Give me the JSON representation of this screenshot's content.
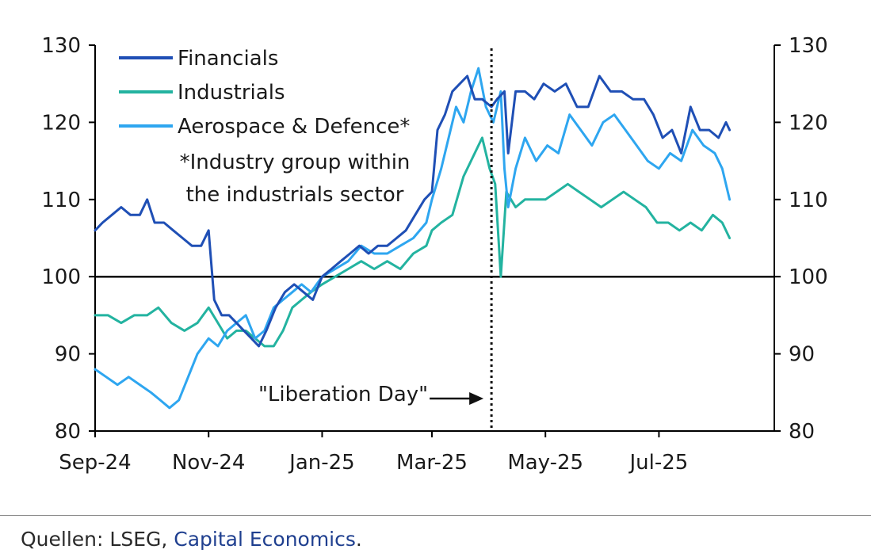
{
  "colors": {
    "financials": "#1f4fb5",
    "industrials": "#23b3a0",
    "aerospace": "#2ea6f0",
    "axis": "#000000",
    "source_link": "#1f3f8f"
  },
  "footer": {
    "source_prefix": "Quellen: LSEG, ",
    "source_link": "Capital Economics",
    "source_suffix": "."
  },
  "chart_data": {
    "type": "line",
    "title": "",
    "xlabel": "",
    "ylabel": "",
    "ylim": [
      80,
      130
    ],
    "y_ticks": [
      "80",
      "90",
      "100",
      "110",
      "120",
      "130"
    ],
    "y_tick_values": [
      80,
      90,
      100,
      110,
      120,
      130
    ],
    "right_y_ticks": [
      "80",
      "90",
      "100",
      "110",
      "120",
      "130"
    ],
    "x_start_date": "2024-09-01",
    "x_end_date": "2025-09-01",
    "x_ticks": [
      "Sep-24",
      "Nov-24",
      "Jan-25",
      "Mar-25",
      "May-25",
      "Jul-25"
    ],
    "x_tick_dates": [
      "2024-09-01",
      "2024-11-01",
      "2025-01-01",
      "2025-03-01",
      "2025-05-01",
      "2025-07-01"
    ],
    "reference_line": 100,
    "grid": false,
    "legend_position": "top-left",
    "legend_note": [
      "*Industry group within",
      "the industrials sector"
    ],
    "annotation": {
      "label": "\"Liberation Day\"",
      "date": "2025-04-02"
    },
    "series": [
      {
        "name": "Financials",
        "color": "#1f4fb5",
        "points": [
          [
            "2024-09-01",
            106
          ],
          [
            "2024-09-05",
            107
          ],
          [
            "2024-09-10",
            108
          ],
          [
            "2024-09-15",
            109
          ],
          [
            "2024-09-20",
            108
          ],
          [
            "2024-09-25",
            108
          ],
          [
            "2024-09-29",
            110
          ],
          [
            "2024-10-03",
            107
          ],
          [
            "2024-10-08",
            107
          ],
          [
            "2024-10-13",
            106
          ],
          [
            "2024-10-18",
            105
          ],
          [
            "2024-10-23",
            104
          ],
          [
            "2024-10-28",
            104
          ],
          [
            "2024-11-01",
            106
          ],
          [
            "2024-11-04",
            97
          ],
          [
            "2024-11-08",
            95
          ],
          [
            "2024-11-12",
            95
          ],
          [
            "2024-11-16",
            94
          ],
          [
            "2024-11-20",
            93
          ],
          [
            "2024-11-24",
            92
          ],
          [
            "2024-11-28",
            91
          ],
          [
            "2024-12-02",
            93
          ],
          [
            "2024-12-07",
            96
          ],
          [
            "2024-12-12",
            98
          ],
          [
            "2024-12-17",
            99
          ],
          [
            "2024-12-22",
            98
          ],
          [
            "2024-12-27",
            97
          ],
          [
            "2025-01-01",
            100
          ],
          [
            "2025-01-06",
            101
          ],
          [
            "2025-01-11",
            102
          ],
          [
            "2025-01-16",
            103
          ],
          [
            "2025-01-21",
            104
          ],
          [
            "2025-01-26",
            103
          ],
          [
            "2025-01-31",
            104
          ],
          [
            "2025-02-05",
            104
          ],
          [
            "2025-02-10",
            105
          ],
          [
            "2025-02-15",
            106
          ],
          [
            "2025-02-20",
            108
          ],
          [
            "2025-02-25",
            110
          ],
          [
            "2025-03-01",
            111
          ],
          [
            "2025-03-04",
            119
          ],
          [
            "2025-03-08",
            121
          ],
          [
            "2025-03-12",
            124
          ],
          [
            "2025-03-16",
            125
          ],
          [
            "2025-03-20",
            126
          ],
          [
            "2025-03-24",
            123
          ],
          [
            "2025-03-28",
            123
          ],
          [
            "2025-04-02",
            122
          ],
          [
            "2025-04-05",
            123
          ],
          [
            "2025-04-09",
            124
          ],
          [
            "2025-04-11",
            116
          ],
          [
            "2025-04-15",
            124
          ],
          [
            "2025-04-20",
            124
          ],
          [
            "2025-04-25",
            123
          ],
          [
            "2025-04-30",
            125
          ],
          [
            "2025-05-06",
            124
          ],
          [
            "2025-05-12",
            125
          ],
          [
            "2025-05-18",
            122
          ],
          [
            "2025-05-24",
            122
          ],
          [
            "2025-05-30",
            126
          ],
          [
            "2025-06-05",
            124
          ],
          [
            "2025-06-11",
            124
          ],
          [
            "2025-06-17",
            123
          ],
          [
            "2025-06-23",
            123
          ],
          [
            "2025-06-28",
            121
          ],
          [
            "2025-07-03",
            118
          ],
          [
            "2025-07-08",
            119
          ],
          [
            "2025-07-13",
            116
          ],
          [
            "2025-07-18",
            122
          ],
          [
            "2025-07-23",
            119
          ],
          [
            "2025-07-28",
            119
          ],
          [
            "2025-08-02",
            118
          ],
          [
            "2025-08-06",
            120
          ],
          [
            "2025-08-08",
            119
          ]
        ]
      },
      {
        "name": "Industrials",
        "color": "#23b3a0",
        "points": [
          [
            "2024-09-01",
            95
          ],
          [
            "2024-09-08",
            95
          ],
          [
            "2024-09-15",
            94
          ],
          [
            "2024-09-22",
            95
          ],
          [
            "2024-09-29",
            95
          ],
          [
            "2024-10-05",
            96
          ],
          [
            "2024-10-12",
            94
          ],
          [
            "2024-10-19",
            93
          ],
          [
            "2024-10-26",
            94
          ],
          [
            "2024-11-01",
            96
          ],
          [
            "2024-11-06",
            94
          ],
          [
            "2024-11-11",
            92
          ],
          [
            "2024-11-16",
            93
          ],
          [
            "2024-11-21",
            93
          ],
          [
            "2024-11-26",
            92
          ],
          [
            "2024-12-01",
            91
          ],
          [
            "2024-12-06",
            91
          ],
          [
            "2024-12-11",
            93
          ],
          [
            "2024-12-16",
            96
          ],
          [
            "2024-12-21",
            97
          ],
          [
            "2024-12-26",
            98
          ],
          [
            "2025-01-01",
            99
          ],
          [
            "2025-01-08",
            100
          ],
          [
            "2025-01-15",
            101
          ],
          [
            "2025-01-22",
            102
          ],
          [
            "2025-01-29",
            101
          ],
          [
            "2025-02-05",
            102
          ],
          [
            "2025-02-12",
            101
          ],
          [
            "2025-02-19",
            103
          ],
          [
            "2025-02-26",
            104
          ],
          [
            "2025-03-01",
            106
          ],
          [
            "2025-03-06",
            107
          ],
          [
            "2025-03-12",
            108
          ],
          [
            "2025-03-18",
            113
          ],
          [
            "2025-03-24",
            116
          ],
          [
            "2025-03-28",
            118
          ],
          [
            "2025-04-01",
            114
          ],
          [
            "2025-04-04",
            112
          ],
          [
            "2025-04-07",
            100
          ],
          [
            "2025-04-10",
            111
          ],
          [
            "2025-04-15",
            109
          ],
          [
            "2025-04-20",
            110
          ],
          [
            "2025-04-25",
            110
          ],
          [
            "2025-05-01",
            110
          ],
          [
            "2025-05-07",
            111
          ],
          [
            "2025-05-13",
            112
          ],
          [
            "2025-05-19",
            111
          ],
          [
            "2025-05-25",
            110
          ],
          [
            "2025-05-31",
            109
          ],
          [
            "2025-06-06",
            110
          ],
          [
            "2025-06-12",
            111
          ],
          [
            "2025-06-18",
            110
          ],
          [
            "2025-06-24",
            109
          ],
          [
            "2025-06-30",
            107
          ],
          [
            "2025-07-06",
            107
          ],
          [
            "2025-07-12",
            106
          ],
          [
            "2025-07-18",
            107
          ],
          [
            "2025-07-24",
            106
          ],
          [
            "2025-07-30",
            108
          ],
          [
            "2025-08-04",
            107
          ],
          [
            "2025-08-08",
            105
          ]
        ]
      },
      {
        "name": "Aerospace & Defence*",
        "color": "#2ea6f0",
        "points": [
          [
            "2024-09-01",
            88
          ],
          [
            "2024-09-07",
            87
          ],
          [
            "2024-09-13",
            86
          ],
          [
            "2024-09-19",
            87
          ],
          [
            "2024-09-25",
            86
          ],
          [
            "2024-10-01",
            85
          ],
          [
            "2024-10-06",
            84
          ],
          [
            "2024-10-11",
            83
          ],
          [
            "2024-10-16",
            84
          ],
          [
            "2024-10-21",
            87
          ],
          [
            "2024-10-26",
            90
          ],
          [
            "2024-11-01",
            92
          ],
          [
            "2024-11-06",
            91
          ],
          [
            "2024-11-11",
            93
          ],
          [
            "2024-11-16",
            94
          ],
          [
            "2024-11-21",
            95
          ],
          [
            "2024-11-26",
            92
          ],
          [
            "2024-12-01",
            93
          ],
          [
            "2024-12-06",
            96
          ],
          [
            "2024-12-11",
            97
          ],
          [
            "2024-12-16",
            98
          ],
          [
            "2024-12-21",
            99
          ],
          [
            "2024-12-26",
            98
          ],
          [
            "2025-01-01",
            100
          ],
          [
            "2025-01-08",
            101
          ],
          [
            "2025-01-15",
            102
          ],
          [
            "2025-01-22",
            104
          ],
          [
            "2025-01-29",
            103
          ],
          [
            "2025-02-05",
            103
          ],
          [
            "2025-02-12",
            104
          ],
          [
            "2025-02-19",
            105
          ],
          [
            "2025-02-26",
            107
          ],
          [
            "2025-03-01",
            110
          ],
          [
            "2025-03-06",
            114
          ],
          [
            "2025-03-10",
            118
          ],
          [
            "2025-03-14",
            122
          ],
          [
            "2025-03-18",
            120
          ],
          [
            "2025-03-22",
            124
          ],
          [
            "2025-03-26",
            127
          ],
          [
            "2025-03-30",
            122
          ],
          [
            "2025-04-03",
            120
          ],
          [
            "2025-04-07",
            124
          ],
          [
            "2025-04-09",
            114
          ],
          [
            "2025-04-11",
            109
          ],
          [
            "2025-04-15",
            114
          ],
          [
            "2025-04-20",
            118
          ],
          [
            "2025-04-26",
            115
          ],
          [
            "2025-05-02",
            117
          ],
          [
            "2025-05-08",
            116
          ],
          [
            "2025-05-14",
            121
          ],
          [
            "2025-05-20",
            119
          ],
          [
            "2025-05-26",
            117
          ],
          [
            "2025-06-01",
            120
          ],
          [
            "2025-06-07",
            121
          ],
          [
            "2025-06-13",
            119
          ],
          [
            "2025-06-19",
            117
          ],
          [
            "2025-06-25",
            115
          ],
          [
            "2025-07-01",
            114
          ],
          [
            "2025-07-07",
            116
          ],
          [
            "2025-07-13",
            115
          ],
          [
            "2025-07-19",
            119
          ],
          [
            "2025-07-25",
            117
          ],
          [
            "2025-07-31",
            116
          ],
          [
            "2025-08-04",
            114
          ],
          [
            "2025-08-08",
            110
          ]
        ]
      }
    ]
  }
}
